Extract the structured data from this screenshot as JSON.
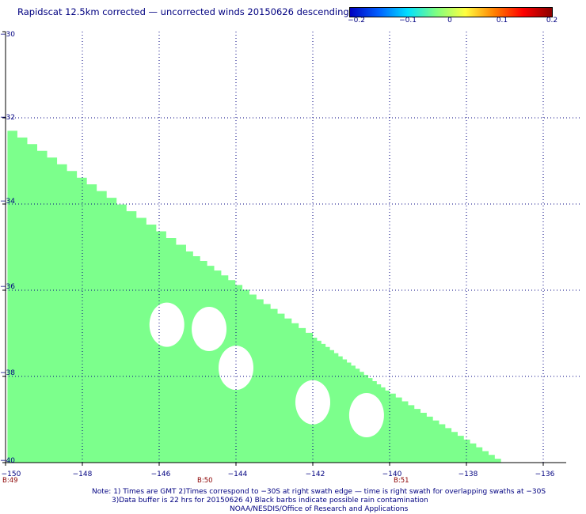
{
  "title": "Rapidscat 12.5km corrected — uncorrected winds 20150626 descending",
  "colorbar": {
    "ticks": [
      "−0.2",
      "−0.1",
      "0",
      "0.1",
      "0.2"
    ],
    "colors": [
      "#0000c0",
      "#0060ff",
      "#00e0ff",
      "#80ff80",
      "#ffff40",
      "#ff8000",
      "#ff0000",
      "#8b0000"
    ]
  },
  "lat_labels": [
    "−30",
    "−32",
    "−34",
    "−36",
    "−38",
    "−40"
  ],
  "lon_labels": [
    "−150",
    "−148",
    "−146",
    "−144",
    "−142",
    "−140",
    "−138",
    "−136"
  ],
  "time_labels": [
    "B:49",
    "B:50",
    "B:51"
  ],
  "notes": {
    "line1": "Note: 1) Times are GMT 2)Times correspond to −30S at right swath edge — time is right swath for overlapping swaths at −30S",
    "line2": "3)Data buffer is 22 hrs for 20150626 4) Black barbs indicate possible rain contamination",
    "line3": "NOAA/NESDIS/Office of Research and Applications"
  },
  "map": {
    "lon_range": [
      -150,
      -135
    ],
    "lat_range": [
      -40,
      -30
    ],
    "fill_color": "#7cff8c",
    "value_shown": "0",
    "swath_edge": [
      [
        -149.95,
        -32.3
      ],
      [
        -145.3,
        -35.1
      ],
      [
        -142.0,
        -37.1
      ],
      [
        -140.0,
        -38.4
      ],
      [
        -137.1,
        -40.0
      ]
    ],
    "gaps": [
      {
        "lon": -145.8,
        "lat": -36.8
      },
      {
        "lon": -144.7,
        "lat": -36.9
      },
      {
        "lon": -144.0,
        "lat": -37.8
      },
      {
        "lon": -142.0,
        "lat": -38.6
      },
      {
        "lon": -140.6,
        "lat": -38.9
      }
    ]
  }
}
